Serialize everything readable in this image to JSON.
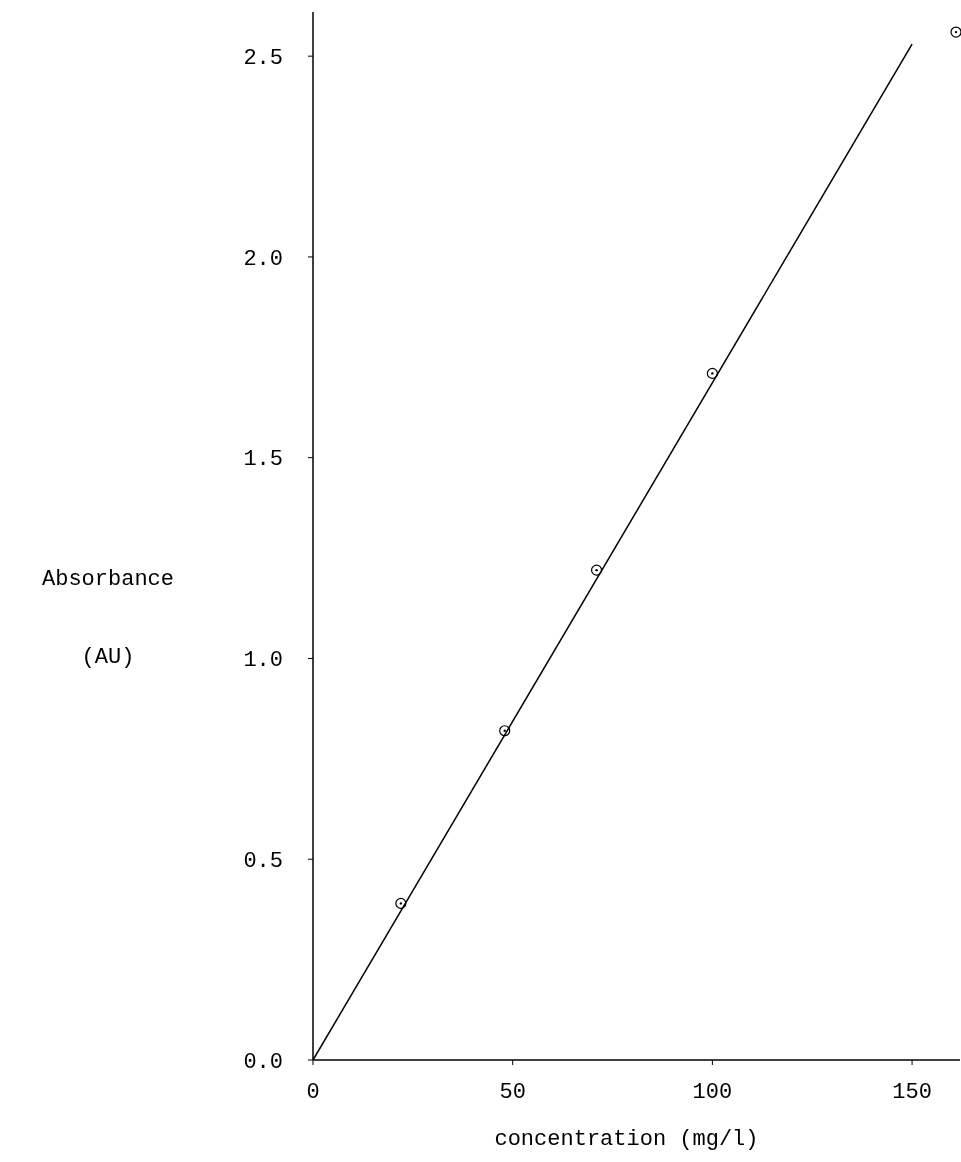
{
  "chart_data": {
    "type": "scatter",
    "xlabel": "concentration (mg/l)",
    "ylabel": "Absorbance (AU)",
    "xlim": [
      0,
      162
    ],
    "xticks": [
      0,
      50,
      100,
      150
    ],
    "ylim": [
      0,
      2.61
    ],
    "yticks": [
      {
        "value": 0,
        "label": "0.0"
      },
      {
        "value": 0.5,
        "label": "0.5"
      },
      {
        "value": 1,
        "label": "1.0"
      },
      {
        "value": 1.5,
        "label": "1.5"
      },
      {
        "value": 2,
        "label": "2.0"
      },
      {
        "value": 2.5,
        "label": "2.5"
      }
    ],
    "grid": false,
    "marker": "circle",
    "color": "#000000",
    "x": [
      22,
      48,
      71,
      100,
      161
    ],
    "values": [
      0.39,
      0.82,
      1.22,
      1.71,
      2.56
    ],
    "series": [
      {
        "type": "line",
        "color": "#000000",
        "x": [
          0,
          150
        ],
        "values": [
          0,
          2.53
        ],
        "line_style": "solid",
        "marker": "none"
      }
    ]
  }
}
